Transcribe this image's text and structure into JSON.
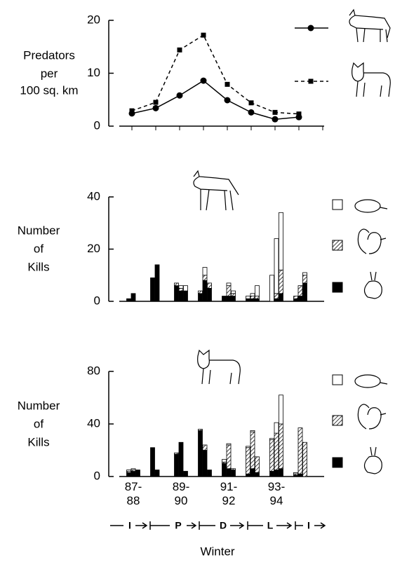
{
  "chart_data": [
    {
      "type": "line",
      "ylabel": [
        "Predators",
        "per",
        "100 sq. km"
      ],
      "ylim": [
        0,
        20
      ],
      "yticks": [
        0,
        10,
        20
      ],
      "series": [
        {
          "color": "#000000",
          "marker": "circle",
          "dash": false,
          "values": [
            2.4,
            3.4,
            5.8,
            8.6,
            4.9,
            2.6,
            1.3,
            1.7
          ]
        },
        {
          "color": "#000000",
          "marker": "square",
          "dash": true,
          "values": [
            2.9,
            4.5,
            14.4,
            17.2,
            7.9,
            4.4,
            2.6,
            2.3
          ]
        }
      ]
    },
    {
      "type": "stacked-bar",
      "ylabel": [
        "Number",
        "of",
        "Kills"
      ],
      "ylim": [
        0,
        40
      ],
      "yticks": [
        0,
        20,
        40
      ],
      "series": [
        {
          "color": "#000000",
          "values": [
            1,
            3,
            0,
            9,
            14,
            0,
            6,
            4,
            4,
            3,
            8,
            5,
            2,
            2,
            2,
            1,
            1,
            1,
            0,
            1,
            3,
            1,
            2,
            7
          ]
        },
        {
          "color": "#000000",
          "pattern": "hatch",
          "values": [
            0,
            0,
            0,
            0,
            0,
            0,
            1,
            1,
            0,
            1,
            2,
            2,
            0,
            4,
            1,
            0,
            1,
            1,
            0,
            2,
            9,
            1,
            4,
            3
          ]
        },
        {
          "color": "#ffffff",
          "values": [
            0,
            0,
            0,
            0,
            0,
            0,
            0,
            1,
            2,
            0,
            3,
            0,
            0,
            1,
            1,
            1,
            1,
            4,
            10,
            21,
            22,
            0,
            0,
            1
          ]
        }
      ]
    },
    {
      "type": "stacked-bar",
      "ylabel": [
        "Number",
        "of",
        "Kills"
      ],
      "ylim": [
        0,
        80
      ],
      "yticks": [
        0,
        40,
        80
      ],
      "categories": [
        null,
        "87-88",
        null,
        null,
        null,
        null,
        null,
        "89-90",
        null,
        null,
        null,
        null,
        null,
        "91-92",
        null,
        null,
        null,
        null,
        null,
        "93-94",
        null,
        null,
        null,
        null
      ],
      "xlabel": "Winter",
      "phases": [
        "I",
        "P",
        "D",
        "L",
        "I"
      ],
      "series": [
        {
          "color": "#000000",
          "values": [
            3,
            4,
            5,
            22,
            5,
            0,
            17,
            26,
            4,
            35,
            20,
            5,
            10,
            6,
            5,
            2,
            6,
            3,
            4,
            5,
            6,
            1,
            2,
            0
          ]
        },
        {
          "color": "#000000",
          "pattern": "hatch",
          "values": [
            1,
            1,
            0,
            0,
            0,
            0,
            1,
            0,
            0,
            1,
            4,
            0,
            1,
            18,
            1,
            20,
            28,
            12,
            24,
            28,
            34,
            1,
            35,
            26
          ]
        },
        {
          "color": "#ffffff",
          "values": [
            1,
            1,
            0,
            0,
            0,
            0,
            0,
            0,
            0,
            0,
            0,
            0,
            2,
            1,
            0,
            1,
            1,
            0,
            1,
            8,
            22,
            1,
            0,
            0
          ]
        }
      ]
    }
  ]
}
